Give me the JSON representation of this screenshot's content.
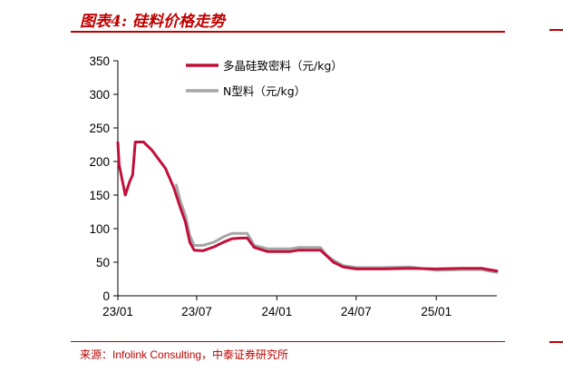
{
  "header": {
    "title": "图表4:  硅料价格走势"
  },
  "footer": {
    "source": "来源：Infolink Consulting，中泰证券研究所"
  },
  "chart_data": {
    "type": "line",
    "title": "",
    "xlabel": "",
    "ylabel": "",
    "ylim": [
      0,
      350
    ],
    "yticks": [
      0,
      50,
      100,
      150,
      200,
      250,
      300,
      350
    ],
    "xticks": [
      "23/01",
      "23/07",
      "24/01",
      "24/07",
      "25/01"
    ],
    "xlim": [
      "2023-01-01",
      "2025-05-20"
    ],
    "grid": false,
    "legend_position": "top-center",
    "series": [
      {
        "name": "多晶硅致密料（元/kg）",
        "color": "#c0103a",
        "points": [
          [
            "2023-01-01",
            228
          ],
          [
            "2023-01-04",
            195
          ],
          [
            "2023-01-18",
            150
          ],
          [
            "2023-01-28",
            170
          ],
          [
            "2023-02-04",
            180
          ],
          [
            "2023-02-10",
            229
          ],
          [
            "2023-03-01",
            229
          ],
          [
            "2023-03-20",
            217
          ],
          [
            "2023-04-05",
            203
          ],
          [
            "2023-04-20",
            190
          ],
          [
            "2023-05-10",
            160
          ],
          [
            "2023-05-25",
            130
          ],
          [
            "2023-06-05",
            110
          ],
          [
            "2023-06-15",
            80
          ],
          [
            "2023-06-25",
            68
          ],
          [
            "2023-07-15",
            67
          ],
          [
            "2023-08-10",
            73
          ],
          [
            "2023-09-01",
            80
          ],
          [
            "2023-09-20",
            85
          ],
          [
            "2023-10-10",
            86
          ],
          [
            "2023-10-25",
            86
          ],
          [
            "2023-11-10",
            72
          ],
          [
            "2023-12-10",
            66
          ],
          [
            "2024-01-10",
            66
          ],
          [
            "2024-02-01",
            66
          ],
          [
            "2024-02-20",
            68
          ],
          [
            "2024-03-15",
            68
          ],
          [
            "2024-04-10",
            68
          ],
          [
            "2024-04-25",
            59
          ],
          [
            "2024-05-10",
            50
          ],
          [
            "2024-06-01",
            43
          ],
          [
            "2024-07-01",
            40
          ],
          [
            "2024-09-01",
            40
          ],
          [
            "2024-11-01",
            41
          ],
          [
            "2025-01-01",
            40
          ],
          [
            "2025-03-01",
            41
          ],
          [
            "2025-04-15",
            41
          ],
          [
            "2025-05-01",
            39
          ],
          [
            "2025-05-20",
            37
          ]
        ]
      },
      {
        "name": "N型料（元/kg）",
        "color": "#a6a6a6",
        "points": [
          [
            "2023-05-15",
            165
          ],
          [
            "2023-05-25",
            140
          ],
          [
            "2023-06-05",
            120
          ],
          [
            "2023-06-15",
            90
          ],
          [
            "2023-06-25",
            75
          ],
          [
            "2023-07-15",
            75
          ],
          [
            "2023-08-10",
            80
          ],
          [
            "2023-09-01",
            88
          ],
          [
            "2023-09-20",
            93
          ],
          [
            "2023-10-10",
            93
          ],
          [
            "2023-10-25",
            93
          ],
          [
            "2023-11-10",
            75
          ],
          [
            "2023-12-10",
            70
          ],
          [
            "2024-01-10",
            70
          ],
          [
            "2024-02-01",
            70
          ],
          [
            "2024-02-20",
            72
          ],
          [
            "2024-03-15",
            72
          ],
          [
            "2024-04-10",
            72
          ],
          [
            "2024-04-25",
            60
          ],
          [
            "2024-05-10",
            53
          ],
          [
            "2024-06-01",
            45
          ],
          [
            "2024-07-01",
            42
          ],
          [
            "2024-09-01",
            42
          ],
          [
            "2024-11-01",
            43
          ],
          [
            "2025-01-01",
            38
          ],
          [
            "2025-03-01",
            39
          ],
          [
            "2025-04-15",
            39
          ],
          [
            "2025-05-01",
            37
          ],
          [
            "2025-05-20",
            35
          ]
        ]
      }
    ]
  }
}
